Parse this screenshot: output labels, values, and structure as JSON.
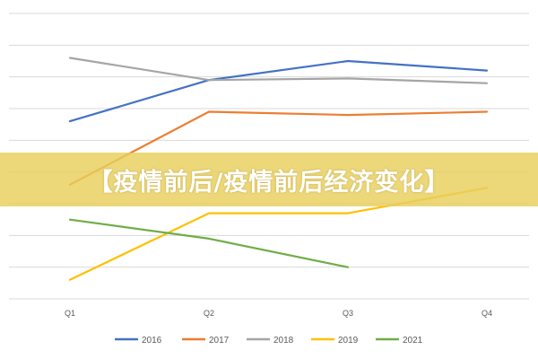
{
  "banner": {
    "text": "【疫情前后/疫情前后经济变化】"
  },
  "chart_data": {
    "type": "line",
    "title": "",
    "xlabel": "",
    "ylabel": "",
    "categories": [
      "Q1",
      "Q2",
      "Q3",
      "Q4"
    ],
    "ylim": [
      0,
      9
    ],
    "grid": true,
    "legend_position": "bottom",
    "series": [
      {
        "name": "2016",
        "color": "#4472C4",
        "values": [
          5.6,
          6.9,
          7.5,
          7.2
        ]
      },
      {
        "name": "2017",
        "color": "#ED7D31",
        "values": [
          3.6,
          5.9,
          5.8,
          5.9
        ]
      },
      {
        "name": "2018",
        "color": "#A5A5A5",
        "values": [
          7.6,
          6.9,
          6.95,
          6.8
        ]
      },
      {
        "name": "2019",
        "color": "#FFC000",
        "values": [
          0.6,
          2.7,
          2.7,
          3.5
        ]
      },
      {
        "name": "2021",
        "color": "#70AD47",
        "values": [
          2.5,
          1.9,
          1.0,
          null
        ]
      }
    ]
  }
}
